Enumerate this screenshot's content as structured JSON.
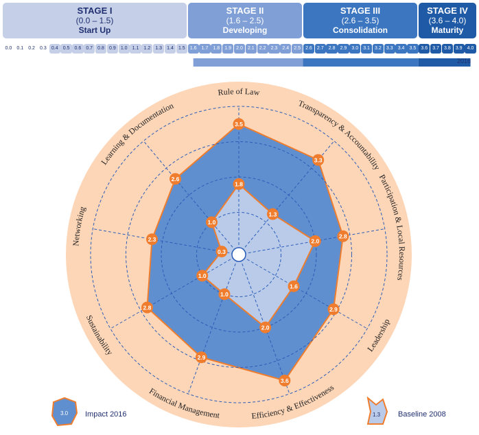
{
  "stages": [
    {
      "title": "STAGE I",
      "range": "(0.0 – 1.5)",
      "name": "Start Up"
    },
    {
      "title": "STAGE II",
      "range": "(1.6 – 2.5)",
      "name": "Developing"
    },
    {
      "title": "STAGE III",
      "range": "(2.6 – 3.5)",
      "name": "Consolidation"
    },
    {
      "title": "STAGE IV",
      "range": "(3.6 – 4.0)",
      "name": "Maturity"
    }
  ],
  "scale_ticks": [
    "0.0",
    "0.1",
    "0.2",
    "0.3",
    "0.4",
    "0.5",
    "0.6",
    "0.7",
    "0.8",
    "0.9",
    "1.0",
    "1.1",
    "1.2",
    "1.3",
    "1.4",
    "1.5",
    "1.6",
    "1.7",
    "1.8",
    "1.9",
    "2.0",
    "2.1",
    "2.2",
    "2.3",
    "2.4",
    "2.5",
    "2.6",
    "2.7",
    "2.8",
    "2.9",
    "3.0",
    "3.1",
    "3.2",
    "3.3",
    "3.4",
    "3.5",
    "3.6",
    "3.7",
    "3.8",
    "3.9",
    "4.0"
  ],
  "timeline": {
    "start_label": "2008",
    "end_label": "2016",
    "start_value": 1.6,
    "end_value": 4.0
  },
  "colors": {
    "stage1": "#c5cfe8",
    "stage2": "#7f9fd6",
    "stage3": "#3c75c0",
    "stage4": "#1f5aa6",
    "outer_ring": "#fdd6b8",
    "impact_fill": "#5f8fce",
    "baseline_fill": "#b9cbe9",
    "marker": "#ef7d2d",
    "text": "#1f2f6f"
  },
  "chart_data": {
    "type": "radar",
    "axes": [
      "Rule of Law",
      "Transparency & Accountability",
      "Participation & Local Resources",
      "Leadership",
      "Efficiency & Effectiveness",
      "Financial Management",
      "Sustainability",
      "Networking",
      "Learning & Documentation"
    ],
    "rmax": 4.0,
    "series": [
      {
        "name": "Impact 2016",
        "values": [
          3.5,
          3.3,
          2.8,
          2.9,
          3.6,
          2.9,
          2.8,
          2.3,
          2.6
        ]
      },
      {
        "name": "Baseline 2008",
        "values": [
          1.8,
          1.3,
          2.0,
          1.6,
          2.0,
          1.0,
          1.0,
          0.3,
          1.0
        ]
      }
    ],
    "value_labels": [
      [
        "3.5",
        "3.3",
        "2.8",
        "2.9",
        "3.6",
        "2.9",
        "2.8",
        "2.3",
        "2.6"
      ],
      [
        "1.8",
        "1.3",
        "2.0",
        "1.6",
        "2.0",
        "1.0",
        "1.0",
        "0.3",
        "1.0"
      ]
    ]
  },
  "legend": {
    "impact": {
      "label": "Impact 2016",
      "sample": "3.0"
    },
    "baseline": {
      "label": "Baseline 2008",
      "sample": "1.3"
    }
  }
}
